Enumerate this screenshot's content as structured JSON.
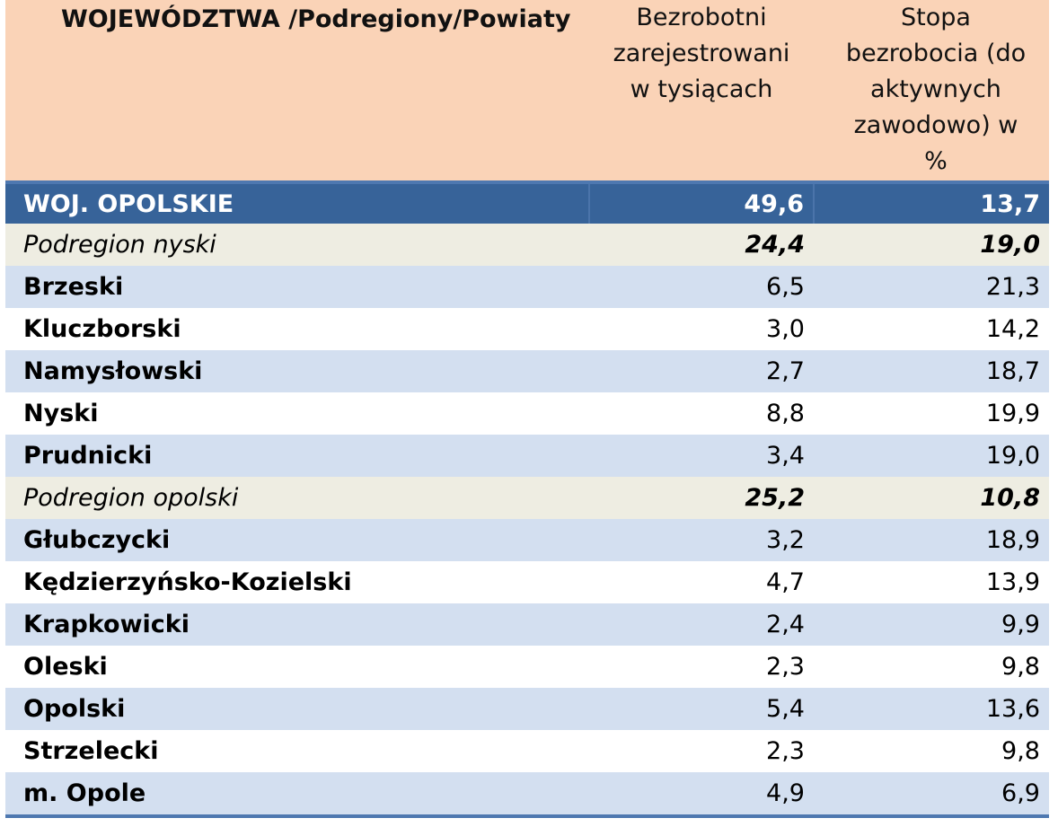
{
  "header": {
    "region": "WOJEWÓDZTWA /Podregiony/Powiaty",
    "unemployed_lines": [
      "Bezrobotni",
      "zarejestrowani",
      "w tysiącach"
    ],
    "rate_lines": [
      "Stopa",
      "bezrobocia  (do",
      "aktywnych",
      "zawodowo) w",
      "%"
    ]
  },
  "rows": [
    {
      "name": "WOJ. OPOLSKIE",
      "unemployed": "49,6",
      "rate": "13,7"
    },
    {
      "name": "Podregion nyski",
      "unemployed": "24,4",
      "rate": "19,0"
    },
    {
      "name": "Brzeski",
      "unemployed": "6,5",
      "rate": "21,3"
    },
    {
      "name": "Kluczborski",
      "unemployed": "3,0",
      "rate": "14,2"
    },
    {
      "name": "Namysłowski",
      "unemployed": "2,7",
      "rate": "18,7"
    },
    {
      "name": "Nyski",
      "unemployed": "8,8",
      "rate": "19,9"
    },
    {
      "name": "Prudnicki",
      "unemployed": "3,4",
      "rate": "19,0"
    },
    {
      "name": "Podregion opolski",
      "unemployed": "25,2",
      "rate": "10,8"
    },
    {
      "name": "Głubczycki",
      "unemployed": "3,2",
      "rate": "18,9"
    },
    {
      "name": "Kędzierzyńsko-Kozielski",
      "unemployed": "4,7",
      "rate": "13,9"
    },
    {
      "name": "Krapkowicki",
      "unemployed": "2,4",
      "rate": "9,9"
    },
    {
      "name": "Oleski",
      "unemployed": "2,3",
      "rate": "9,8"
    },
    {
      "name": "Opolski",
      "unemployed": "5,4",
      "rate": "13,6"
    },
    {
      "name": "Strzelecki",
      "unemployed": "2,3",
      "rate": "9,8"
    },
    {
      "name": "m. Opole",
      "unemployed": "4,9",
      "rate": "6,9"
    }
  ],
  "colors": {
    "header_bg": "#fad3b7",
    "voivodeship_bg": "#376399",
    "subregion_bg": "#eeede2",
    "band_blue": "#d3dff0"
  }
}
